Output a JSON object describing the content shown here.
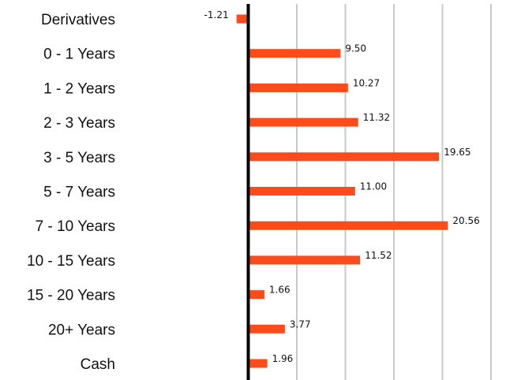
{
  "chart_data": {
    "type": "bar",
    "orientation": "horizontal",
    "categories": [
      "Derivatives",
      "0 - 1 Years",
      "1 - 2 Years",
      "2 - 3 Years",
      "3 - 5 Years",
      "5 - 7 Years",
      "7 - 10 Years",
      "10 - 15 Years",
      "15 - 20 Years",
      "20+ Years",
      "Cash"
    ],
    "values": [
      -1.21,
      9.5,
      10.27,
      11.32,
      19.65,
      11.0,
      20.56,
      11.52,
      1.66,
      3.77,
      1.96
    ],
    "value_labels": [
      "-1.21",
      "9.50",
      "10.27",
      "11.32",
      "19.65",
      "11.00",
      "20.56",
      "11.52",
      "1.66",
      "3.77",
      "1.96"
    ],
    "xlim": [
      -5,
      25
    ],
    "x_gridlines": [
      5,
      10,
      15,
      20,
      25
    ],
    "grid": true,
    "title": "",
    "xlabel": "",
    "ylabel": "",
    "colors": {
      "bar": "#ff4a1c",
      "grid": "#c8c8c8",
      "zero_axis": "#000000"
    }
  }
}
